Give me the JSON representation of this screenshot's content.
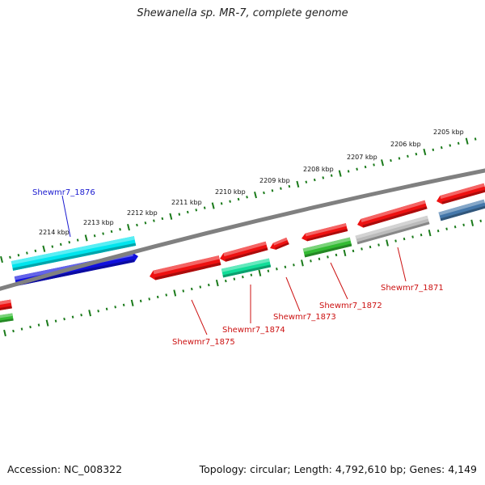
{
  "title": "Shewanella sp. MR-7, complete genome",
  "footer": {
    "accession": "Accession: NC_008322",
    "summary": "Topology: circular; Length: 4,792,610 bp; Genes: 4,149"
  },
  "scale_labels": [
    "2205 kbp",
    "2206 kbp",
    "2207 kbp",
    "2208 kbp",
    "2209 kbp",
    "2210 kbp",
    "2211 kbp",
    "2212 kbp",
    "2213 kbp",
    "2214 kbp"
  ],
  "gene_labels": [
    {
      "text": "Shewmr7_1876",
      "color": "#1a1ad0"
    },
    {
      "text": "Shewmr7_1875",
      "color": "#cc1111"
    },
    {
      "text": "Shewmr7_1874",
      "color": "#cc1111"
    },
    {
      "text": "Shewmr7_1873",
      "color": "#cc1111"
    },
    {
      "text": "Shewmr7_1872",
      "color": "#cc1111"
    },
    {
      "text": "Shewmr7_1871",
      "color": "#cc1111"
    }
  ],
  "colors": {
    "backbone": "#808080",
    "tick": "#1a7a1a",
    "red": "#ee1111",
    "cyan": "#00e5ee",
    "blue": "#1010dd",
    "green": "#33bb33",
    "teal": "#11dd99",
    "gray": "#bbbbbb",
    "steelblue": "#4477aa"
  }
}
